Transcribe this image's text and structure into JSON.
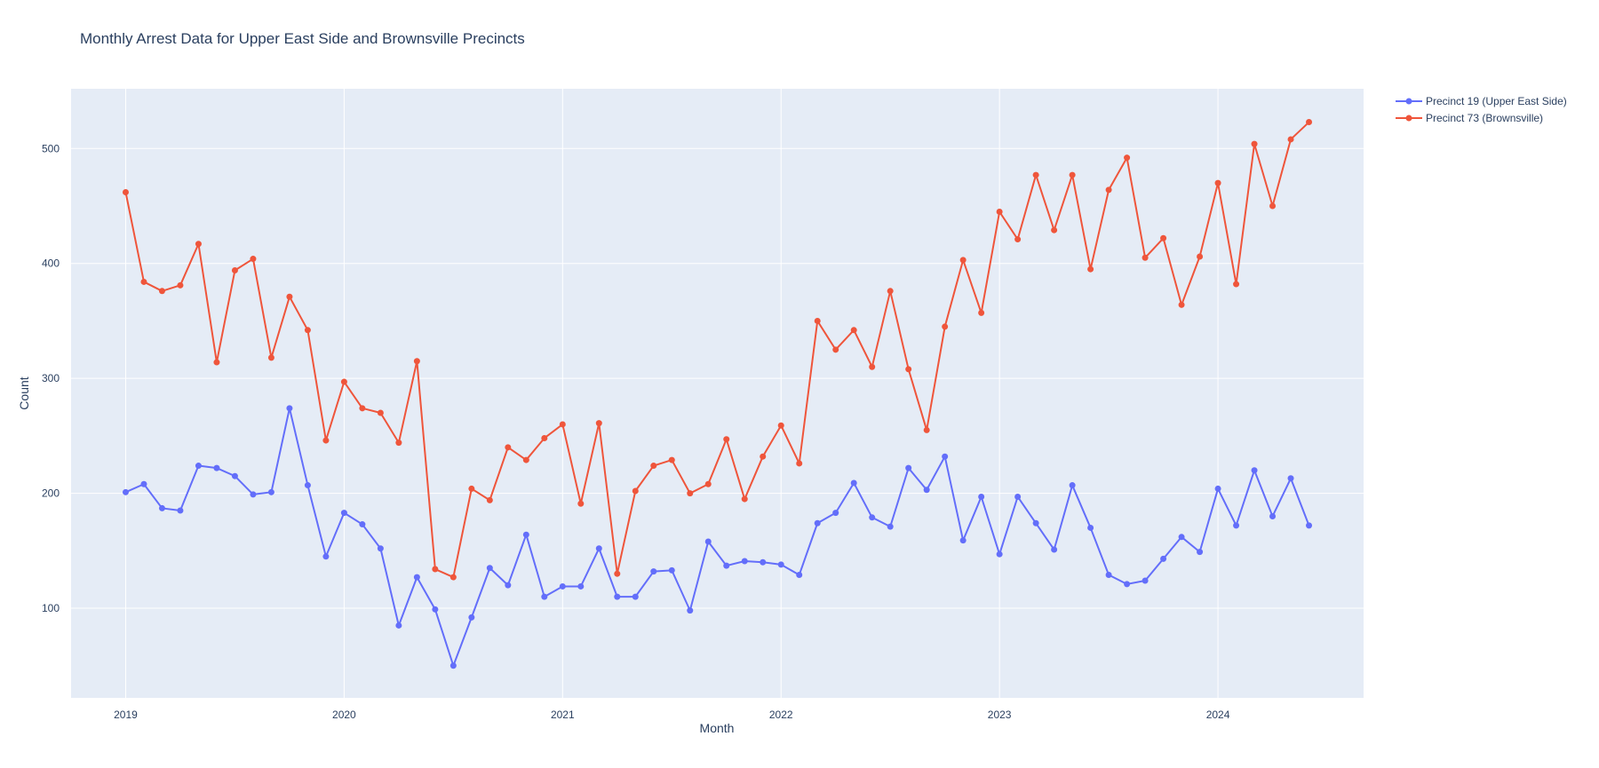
{
  "chart_data": {
    "type": "line",
    "title": "Monthly Arrest Data for Upper East Side and Brownsville Precincts",
    "xlabel": "Month",
    "ylabel": "Count",
    "x_start": "2019-01",
    "x_tick_labels": [
      "2019",
      "2020",
      "2021",
      "2022",
      "2023",
      "2024"
    ],
    "x_range": [
      "2018-10",
      "2024-09"
    ],
    "y_tick_values": [
      100,
      200,
      300,
      400,
      500
    ],
    "ylim": [
      22,
      552
    ],
    "grid": true,
    "legend_position": "top-right",
    "background_color": "#e5ecf6",
    "series": [
      {
        "name": "Precinct 19 (Upper East Side)",
        "color": "#636efa",
        "values": [
          201,
          208,
          187,
          185,
          224,
          222,
          215,
          199,
          201,
          274,
          207,
          145,
          183,
          173,
          152,
          85,
          127,
          99,
          50,
          92,
          135,
          120,
          164,
          110,
          119,
          119,
          152,
          110,
          110,
          132,
          133,
          98,
          158,
          137,
          141,
          140,
          138,
          129,
          174,
          183,
          209,
          179,
          171,
          222,
          203,
          232,
          159,
          197,
          147,
          197,
          174,
          151,
          207,
          170,
          129,
          121,
          124,
          143,
          162,
          149,
          204,
          172,
          220,
          180,
          213,
          172
        ]
      },
      {
        "name": "Precinct 73 (Brownsville)",
        "color": "#ef553b",
        "values": [
          462,
          384,
          376,
          381,
          417,
          314,
          394,
          404,
          318,
          371,
          342,
          246,
          297,
          274,
          270,
          244,
          315,
          134,
          127,
          204,
          194,
          240,
          229,
          248,
          260,
          191,
          261,
          130,
          202,
          224,
          229,
          200,
          208,
          247,
          195,
          232,
          259,
          226,
          350,
          325,
          342,
          310,
          376,
          308,
          255,
          345,
          403,
          357,
          445,
          421,
          477,
          429,
          477,
          395,
          464,
          492,
          405,
          422,
          364,
          406,
          470,
          382,
          504,
          450,
          508,
          523
        ]
      }
    ]
  }
}
